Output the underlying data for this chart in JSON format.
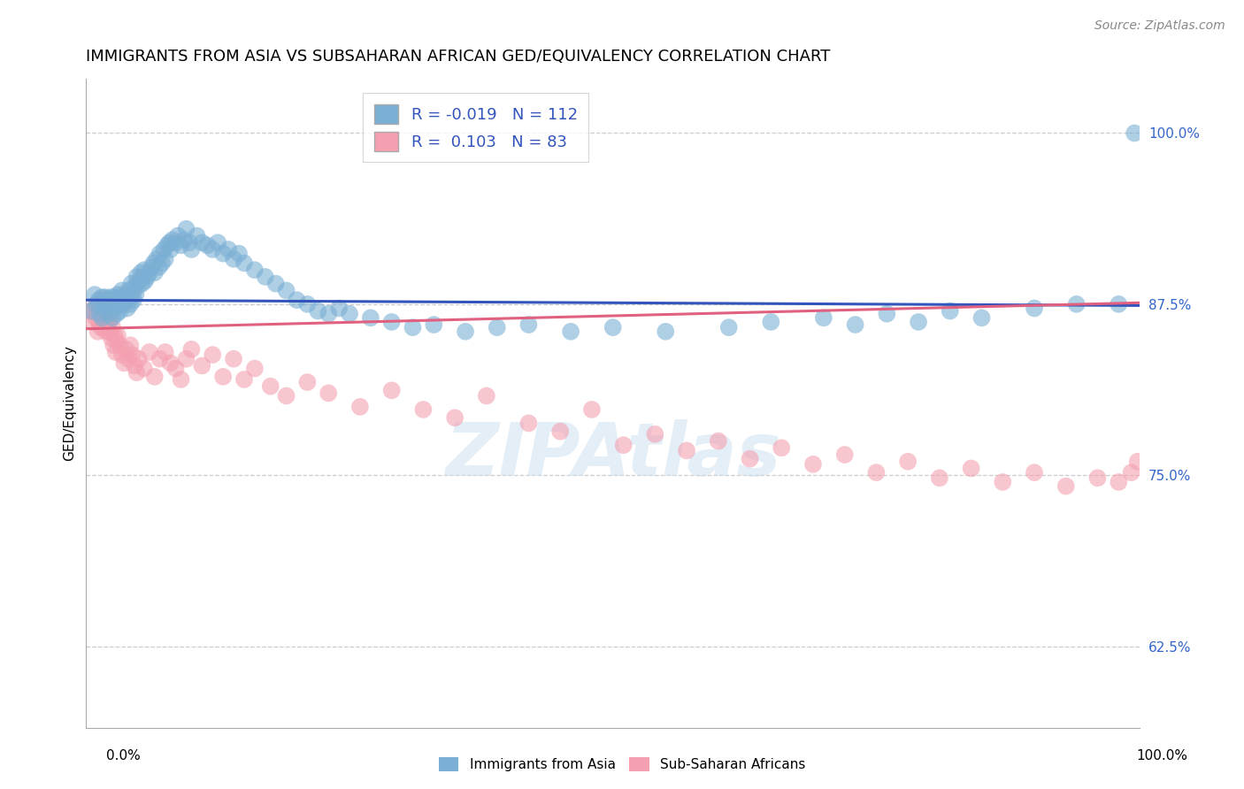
{
  "title": "IMMIGRANTS FROM ASIA VS SUBSAHARAN AFRICAN GED/EQUIVALENCY CORRELATION CHART",
  "source": "Source: ZipAtlas.com",
  "ylabel": "GED/Equivalency",
  "ytick_labels": [
    "62.5%",
    "75.0%",
    "87.5%",
    "100.0%"
  ],
  "ytick_values": [
    0.625,
    0.75,
    0.875,
    1.0
  ],
  "xlim": [
    0.0,
    1.0
  ],
  "ylim": [
    0.565,
    1.04
  ],
  "legend_label1": "Immigrants from Asia",
  "legend_label2": "Sub-Saharan Africans",
  "blue_color": "#7bafd4",
  "pink_color": "#f4a0b0",
  "blue_line_color": "#3355bb",
  "pink_line_color": "#e06080",
  "blue_R": -0.019,
  "blue_N": 112,
  "pink_R": 0.103,
  "pink_N": 83,
  "blue_line_y0": 0.878,
  "blue_line_y1": 0.874,
  "pink_line_y0": 0.857,
  "pink_line_y1": 0.876,
  "blue_scatter_x": [
    0.005,
    0.008,
    0.01,
    0.012,
    0.013,
    0.015,
    0.015,
    0.017,
    0.018,
    0.019,
    0.02,
    0.021,
    0.022,
    0.023,
    0.024,
    0.025,
    0.025,
    0.026,
    0.027,
    0.028,
    0.029,
    0.03,
    0.03,
    0.031,
    0.032,
    0.033,
    0.034,
    0.035,
    0.036,
    0.037,
    0.038,
    0.039,
    0.04,
    0.041,
    0.042,
    0.043,
    0.044,
    0.045,
    0.046,
    0.047,
    0.048,
    0.049,
    0.05,
    0.052,
    0.053,
    0.054,
    0.055,
    0.056,
    0.058,
    0.06,
    0.062,
    0.064,
    0.065,
    0.067,
    0.069,
    0.07,
    0.072,
    0.074,
    0.075,
    0.077,
    0.079,
    0.08,
    0.082,
    0.085,
    0.087,
    0.09,
    0.093,
    0.095,
    0.098,
    0.1,
    0.105,
    0.11,
    0.115,
    0.12,
    0.125,
    0.13,
    0.135,
    0.14,
    0.145,
    0.15,
    0.16,
    0.17,
    0.18,
    0.19,
    0.2,
    0.21,
    0.22,
    0.23,
    0.24,
    0.25,
    0.27,
    0.29,
    0.31,
    0.33,
    0.36,
    0.39,
    0.42,
    0.46,
    0.5,
    0.55,
    0.61,
    0.65,
    0.7,
    0.73,
    0.76,
    0.79,
    0.82,
    0.85,
    0.9,
    0.94,
    0.98,
    0.995
  ],
  "blue_scatter_y": [
    0.87,
    0.882,
    0.875,
    0.878,
    0.868,
    0.88,
    0.865,
    0.875,
    0.88,
    0.872,
    0.878,
    0.868,
    0.875,
    0.88,
    0.872,
    0.878,
    0.865,
    0.872,
    0.88,
    0.875,
    0.868,
    0.875,
    0.882,
    0.878,
    0.87,
    0.878,
    0.885,
    0.88,
    0.875,
    0.882,
    0.878,
    0.872,
    0.885,
    0.88,
    0.875,
    0.89,
    0.882,
    0.878,
    0.888,
    0.882,
    0.895,
    0.888,
    0.892,
    0.898,
    0.89,
    0.895,
    0.9,
    0.892,
    0.895,
    0.898,
    0.902,
    0.905,
    0.898,
    0.908,
    0.902,
    0.912,
    0.905,
    0.915,
    0.908,
    0.918,
    0.92,
    0.915,
    0.922,
    0.92,
    0.925,
    0.918,
    0.922,
    0.93,
    0.92,
    0.915,
    0.925,
    0.92,
    0.918,
    0.915,
    0.92,
    0.912,
    0.915,
    0.908,
    0.912,
    0.905,
    0.9,
    0.895,
    0.89,
    0.885,
    0.878,
    0.875,
    0.87,
    0.868,
    0.872,
    0.868,
    0.865,
    0.862,
    0.858,
    0.86,
    0.855,
    0.858,
    0.86,
    0.855,
    0.858,
    0.855,
    0.858,
    0.862,
    0.865,
    0.86,
    0.868,
    0.862,
    0.87,
    0.865,
    0.872,
    0.875,
    0.875,
    1.0
  ],
  "pink_scatter_x": [
    0.004,
    0.006,
    0.008,
    0.009,
    0.01,
    0.011,
    0.012,
    0.013,
    0.014,
    0.015,
    0.015,
    0.016,
    0.017,
    0.018,
    0.019,
    0.02,
    0.021,
    0.022,
    0.023,
    0.024,
    0.025,
    0.026,
    0.027,
    0.028,
    0.029,
    0.03,
    0.032,
    0.034,
    0.036,
    0.038,
    0.04,
    0.042,
    0.044,
    0.046,
    0.048,
    0.05,
    0.055,
    0.06,
    0.065,
    0.07,
    0.075,
    0.08,
    0.085,
    0.09,
    0.095,
    0.1,
    0.11,
    0.12,
    0.13,
    0.14,
    0.15,
    0.16,
    0.175,
    0.19,
    0.21,
    0.23,
    0.26,
    0.29,
    0.32,
    0.35,
    0.38,
    0.42,
    0.45,
    0.48,
    0.51,
    0.54,
    0.57,
    0.6,
    0.63,
    0.66,
    0.69,
    0.72,
    0.75,
    0.78,
    0.81,
    0.84,
    0.87,
    0.9,
    0.93,
    0.96,
    0.98,
    0.992,
    0.998
  ],
  "pink_scatter_y": [
    0.87,
    0.862,
    0.872,
    0.865,
    0.868,
    0.855,
    0.862,
    0.87,
    0.858,
    0.875,
    0.865,
    0.858,
    0.872,
    0.862,
    0.855,
    0.868,
    0.86,
    0.855,
    0.865,
    0.85,
    0.858,
    0.845,
    0.852,
    0.84,
    0.848,
    0.852,
    0.845,
    0.838,
    0.832,
    0.842,
    0.835,
    0.845,
    0.838,
    0.83,
    0.825,
    0.835,
    0.828,
    0.84,
    0.822,
    0.835,
    0.84,
    0.832,
    0.828,
    0.82,
    0.835,
    0.842,
    0.83,
    0.838,
    0.822,
    0.835,
    0.82,
    0.828,
    0.815,
    0.808,
    0.818,
    0.81,
    0.8,
    0.812,
    0.798,
    0.792,
    0.808,
    0.788,
    0.782,
    0.798,
    0.772,
    0.78,
    0.768,
    0.775,
    0.762,
    0.77,
    0.758,
    0.765,
    0.752,
    0.76,
    0.748,
    0.755,
    0.745,
    0.752,
    0.742,
    0.748,
    0.745,
    0.752,
    0.76
  ],
  "background_color": "#ffffff",
  "grid_color": "#cccccc",
  "title_fontsize": 13,
  "axis_label_fontsize": 11,
  "tick_fontsize": 11,
  "source_fontsize": 10
}
